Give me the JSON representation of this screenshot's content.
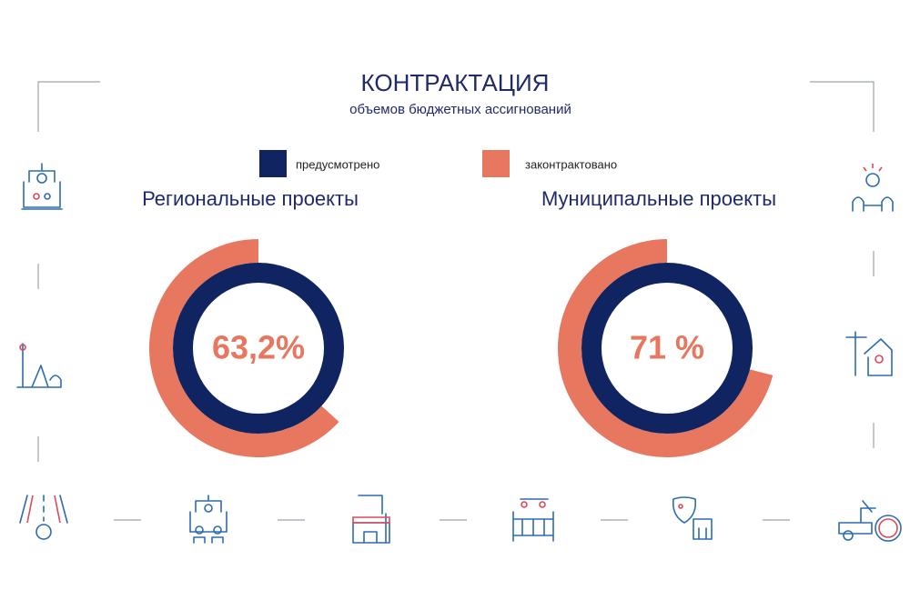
{
  "header": {
    "title": "КОНТРАКТАЦИЯ",
    "subtitle": "объемов бюджетных ассигнований"
  },
  "legend": [
    {
      "name": "предусмотрено",
      "color": "#0f2461"
    },
    {
      "name": "законтрактовано",
      "color": "#e8775f"
    }
  ],
  "chart_data": [
    {
      "type": "donut",
      "title": "Региональные проекты",
      "value": 63.2,
      "value_label": "63,2%"
    },
    {
      "type": "donut",
      "title": "Муниципальные проекты",
      "value": 71,
      "value_label": "71 %"
    }
  ]
}
